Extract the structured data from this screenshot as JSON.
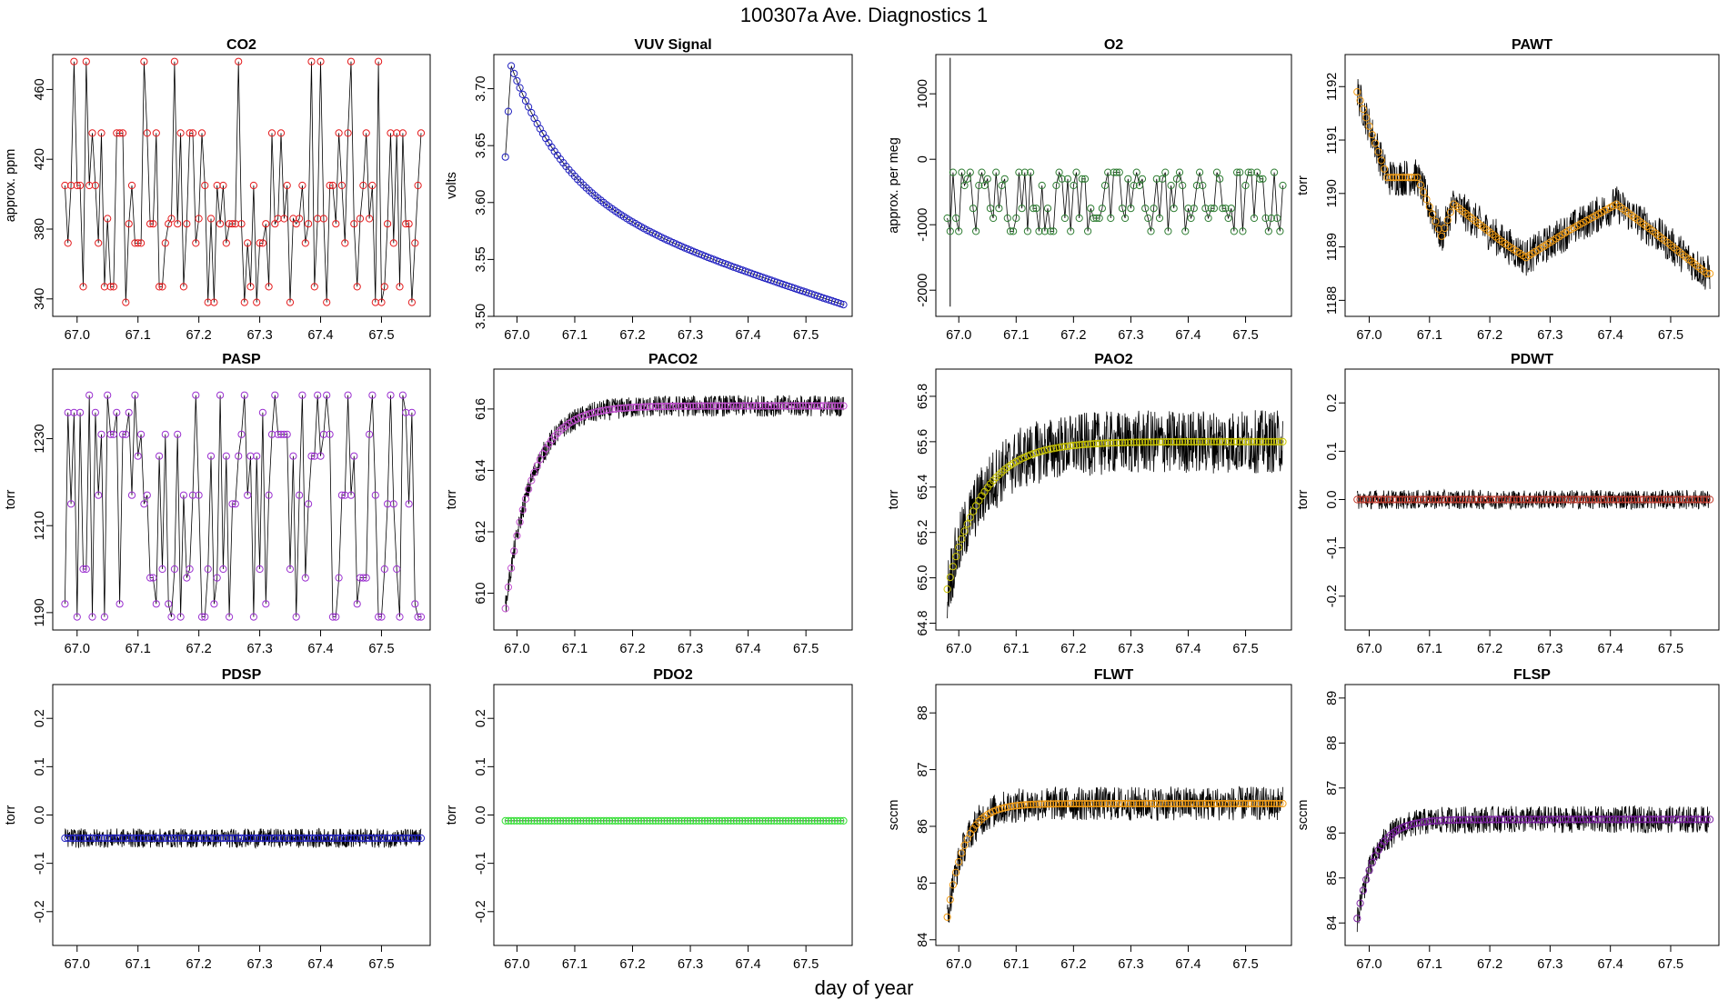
{
  "title": "100307a   Ave. Diagnostics 1",
  "xlabel": "day of year",
  "chart_data": [
    {
      "id": "co2",
      "type": "line",
      "title": "CO2",
      "ylabel": "approx. ppm",
      "xlim": [
        66.96,
        67.58
      ],
      "ylim": [
        330,
        480
      ],
      "xticks": [
        67.0,
        67.1,
        67.2,
        67.3,
        67.4,
        67.5
      ],
      "xticklabels": [
        "67.0",
        "67.1",
        "67.2",
        "67.3",
        "67.4",
        "67.5"
      ],
      "yticks": [
        340,
        380,
        420,
        460
      ],
      "yticklabels": [
        "340",
        "380",
        "420",
        "460"
      ],
      "color": "#e41a1c",
      "pattern": "sawtooth",
      "series": {
        "levels": [
          338,
          347,
          372,
          383,
          386,
          405,
          435,
          476
        ]
      }
    },
    {
      "id": "vuv",
      "type": "line",
      "title": "VUV Signal",
      "ylabel": "volts",
      "xlim": [
        66.96,
        67.58
      ],
      "ylim": [
        3.5,
        3.73
      ],
      "xticks": [
        67.0,
        67.1,
        67.2,
        67.3,
        67.4,
        67.5
      ],
      "xticklabels": [
        "67.0",
        "67.1",
        "67.2",
        "67.3",
        "67.4",
        "67.5"
      ],
      "yticks": [
        3.5,
        3.55,
        3.6,
        3.65,
        3.7
      ],
      "yticklabels": [
        "3.50",
        "3.55",
        "3.60",
        "3.65",
        "3.70"
      ],
      "color": "#1f1fbf",
      "pattern": "decay",
      "series": {
        "start": 3.64,
        "peak": 3.72,
        "peak_x": 66.99,
        "end": 3.51
      }
    },
    {
      "id": "o2",
      "type": "line",
      "title": "O2",
      "ylabel": "approx. per meg",
      "xlim": [
        66.96,
        67.58
      ],
      "ylim": [
        -2400,
        1600
      ],
      "xticks": [
        67.0,
        67.1,
        67.2,
        67.3,
        67.4,
        67.5
      ],
      "xticklabels": [
        "67.0",
        "67.1",
        "67.2",
        "67.3",
        "67.4",
        "67.5"
      ],
      "yticks": [
        -2000,
        -1000,
        0,
        1000
      ],
      "yticklabels": [
        "-2000",
        "-1000",
        "0",
        "1000"
      ],
      "color": "#2e7d32",
      "pattern": "sawtooth",
      "series": {
        "levels": [
          -1100,
          -900,
          -750,
          -400,
          -300,
          -200
        ],
        "spike": [
          1550,
          -2250
        ]
      }
    },
    {
      "id": "pawt",
      "type": "line",
      "title": "PAWT",
      "ylabel": "torr",
      "xlim": [
        66.96,
        67.58
      ],
      "ylim": [
        1187.7,
        1192.6
      ],
      "xticks": [
        67.0,
        67.1,
        67.2,
        67.3,
        67.4,
        67.5
      ],
      "xticklabels": [
        "67.0",
        "67.1",
        "67.2",
        "67.3",
        "67.4",
        "67.5"
      ],
      "yticks": [
        1188,
        1189,
        1190,
        1191,
        1192
      ],
      "yticklabels": [
        "1188",
        "1189",
        "1190",
        "1191",
        "1192"
      ],
      "color": "#f39c12",
      "pattern": "wander",
      "series": {
        "anchors": [
          [
            66.98,
            1191.9
          ],
          [
            67.03,
            1190.3
          ],
          [
            67.08,
            1190.3
          ],
          [
            67.12,
            1189.2
          ],
          [
            67.14,
            1189.8
          ],
          [
            67.22,
            1189.1
          ],
          [
            67.26,
            1188.8
          ],
          [
            67.33,
            1189.3
          ],
          [
            67.41,
            1189.8
          ],
          [
            67.47,
            1189.3
          ],
          [
            67.56,
            1188.5
          ]
        ],
        "noise": 0.35
      }
    },
    {
      "id": "pasp",
      "type": "line",
      "title": "PASP",
      "ylabel": "torr",
      "xlim": [
        66.96,
        67.58
      ],
      "ylim": [
        1186,
        1246
      ],
      "xticks": [
        67.0,
        67.1,
        67.2,
        67.3,
        67.4,
        67.5
      ],
      "xticklabels": [
        "67.0",
        "67.1",
        "67.2",
        "67.3",
        "67.4",
        "67.5"
      ],
      "yticks": [
        1190,
        1210,
        1230
      ],
      "yticklabels": [
        "1190",
        "1210",
        "1230"
      ],
      "color": "#9b30d0",
      "pattern": "sawtooth",
      "series": {
        "levels": [
          1189,
          1192,
          1198,
          1200,
          1215,
          1217,
          1226,
          1231,
          1236,
          1240
        ]
      }
    },
    {
      "id": "paco2",
      "type": "line",
      "title": "PACO2",
      "ylabel": "torr",
      "xlim": [
        66.96,
        67.58
      ],
      "ylim": [
        608.8,
        617.3
      ],
      "xticks": [
        67.0,
        67.1,
        67.2,
        67.3,
        67.4,
        67.5
      ],
      "xticklabels": [
        "67.0",
        "67.1",
        "67.2",
        "67.3",
        "67.4",
        "67.5"
      ],
      "yticks": [
        610,
        612,
        614,
        616
      ],
      "yticklabels": [
        "610",
        "612",
        "614",
        "616"
      ],
      "color": "#c24fd0",
      "pattern": "rise",
      "series": {
        "start": 609.5,
        "end": 616.1,
        "tau": 0.045,
        "noise": 0.35
      }
    },
    {
      "id": "pao2",
      "type": "line",
      "title": "PAO2",
      "ylabel": "torr",
      "xlim": [
        66.96,
        67.58
      ],
      "ylim": [
        64.77,
        65.92
      ],
      "xticks": [
        67.0,
        67.1,
        67.2,
        67.3,
        67.4,
        67.5
      ],
      "xticklabels": [
        "67.0",
        "67.1",
        "67.2",
        "67.3",
        "67.4",
        "67.5"
      ],
      "yticks": [
        64.8,
        65.0,
        65.2,
        65.4,
        65.6,
        65.8
      ],
      "yticklabels": [
        "64.8",
        "65.0",
        "65.2",
        "65.4",
        "65.6",
        "65.8"
      ],
      "color": "#c9c400",
      "pattern": "rise",
      "series": {
        "start": 64.95,
        "end": 65.6,
        "tau": 0.06,
        "noise": 0.14
      }
    },
    {
      "id": "pdwt",
      "type": "line",
      "title": "PDWT",
      "ylabel": "torr",
      "xlim": [
        66.96,
        67.58
      ],
      "ylim": [
        -0.27,
        0.27
      ],
      "xticks": [
        67.0,
        67.1,
        67.2,
        67.3,
        67.4,
        67.5
      ],
      "xticklabels": [
        "67.0",
        "67.1",
        "67.2",
        "67.3",
        "67.4",
        "67.5"
      ],
      "yticks": [
        -0.2,
        -0.1,
        0.0,
        0.1,
        0.2
      ],
      "yticklabels": [
        "-0.2",
        "-0.1",
        "0.0",
        "0.1",
        "0.2"
      ],
      "color": "#c0392b",
      "pattern": "flat",
      "series": {
        "level": 0.0,
        "noise": 0.02
      }
    },
    {
      "id": "pdsp",
      "type": "line",
      "title": "PDSP",
      "ylabel": "torr",
      "xlim": [
        66.96,
        67.58
      ],
      "ylim": [
        -0.27,
        0.27
      ],
      "xticks": [
        67.0,
        67.1,
        67.2,
        67.3,
        67.4,
        67.5
      ],
      "xticklabels": [
        "67.0",
        "67.1",
        "67.2",
        "67.3",
        "67.4",
        "67.5"
      ],
      "yticks": [
        -0.2,
        -0.1,
        0.0,
        0.1,
        0.2
      ],
      "yticklabels": [
        "-0.2",
        "-0.1",
        "0.0",
        "0.1",
        "0.2"
      ],
      "color": "#1f1fbf",
      "pattern": "flat",
      "series": {
        "level": -0.048,
        "noise": 0.02
      }
    },
    {
      "id": "pdo2",
      "type": "line",
      "title": "PDO2",
      "ylabel": "torr",
      "xlim": [
        66.96,
        67.58
      ],
      "ylim": [
        -0.27,
        0.27
      ],
      "xticks": [
        67.0,
        67.1,
        67.2,
        67.3,
        67.4,
        67.5
      ],
      "xticklabels": [
        "67.0",
        "67.1",
        "67.2",
        "67.3",
        "67.4",
        "67.5"
      ],
      "yticks": [
        -0.2,
        -0.1,
        0.0,
        0.1,
        0.2
      ],
      "yticklabels": [
        "-0.2",
        "-0.1",
        "0.0",
        "0.1",
        "0.2"
      ],
      "color": "#33dd33",
      "pattern": "flat",
      "series": {
        "level": -0.012,
        "noise": 0.0
      }
    },
    {
      "id": "flwt",
      "type": "line",
      "title": "FLWT",
      "ylabel": "sccm",
      "xlim": [
        66.96,
        67.58
      ],
      "ylim": [
        83.9,
        88.5
      ],
      "xticks": [
        67.0,
        67.1,
        67.2,
        67.3,
        67.4,
        67.5
      ],
      "xticklabels": [
        "67.0",
        "67.1",
        "67.2",
        "67.3",
        "67.4",
        "67.5"
      ],
      "yticks": [
        84,
        85,
        86,
        87,
        88
      ],
      "yticklabels": [
        "84",
        "85",
        "86",
        "87",
        "88"
      ],
      "color": "#f39c12",
      "pattern": "rise",
      "series": {
        "start": 84.4,
        "end": 86.4,
        "tau": 0.03,
        "noise": 0.3
      }
    },
    {
      "id": "flsp",
      "type": "line",
      "title": "FLSP",
      "ylabel": "sccm",
      "xlim": [
        66.96,
        67.58
      ],
      "ylim": [
        83.5,
        89.3
      ],
      "xticks": [
        67.0,
        67.1,
        67.2,
        67.3,
        67.4,
        67.5
      ],
      "xticklabels": [
        "67.0",
        "67.1",
        "67.2",
        "67.3",
        "67.4",
        "67.5"
      ],
      "yticks": [
        84,
        85,
        86,
        87,
        88,
        89
      ],
      "yticklabels": [
        "84",
        "85",
        "86",
        "87",
        "88",
        "89"
      ],
      "color": "#7b1fa2",
      "pattern": "rise",
      "series": {
        "start": 84.1,
        "end": 86.3,
        "tau": 0.03,
        "noise": 0.3
      }
    }
  ]
}
